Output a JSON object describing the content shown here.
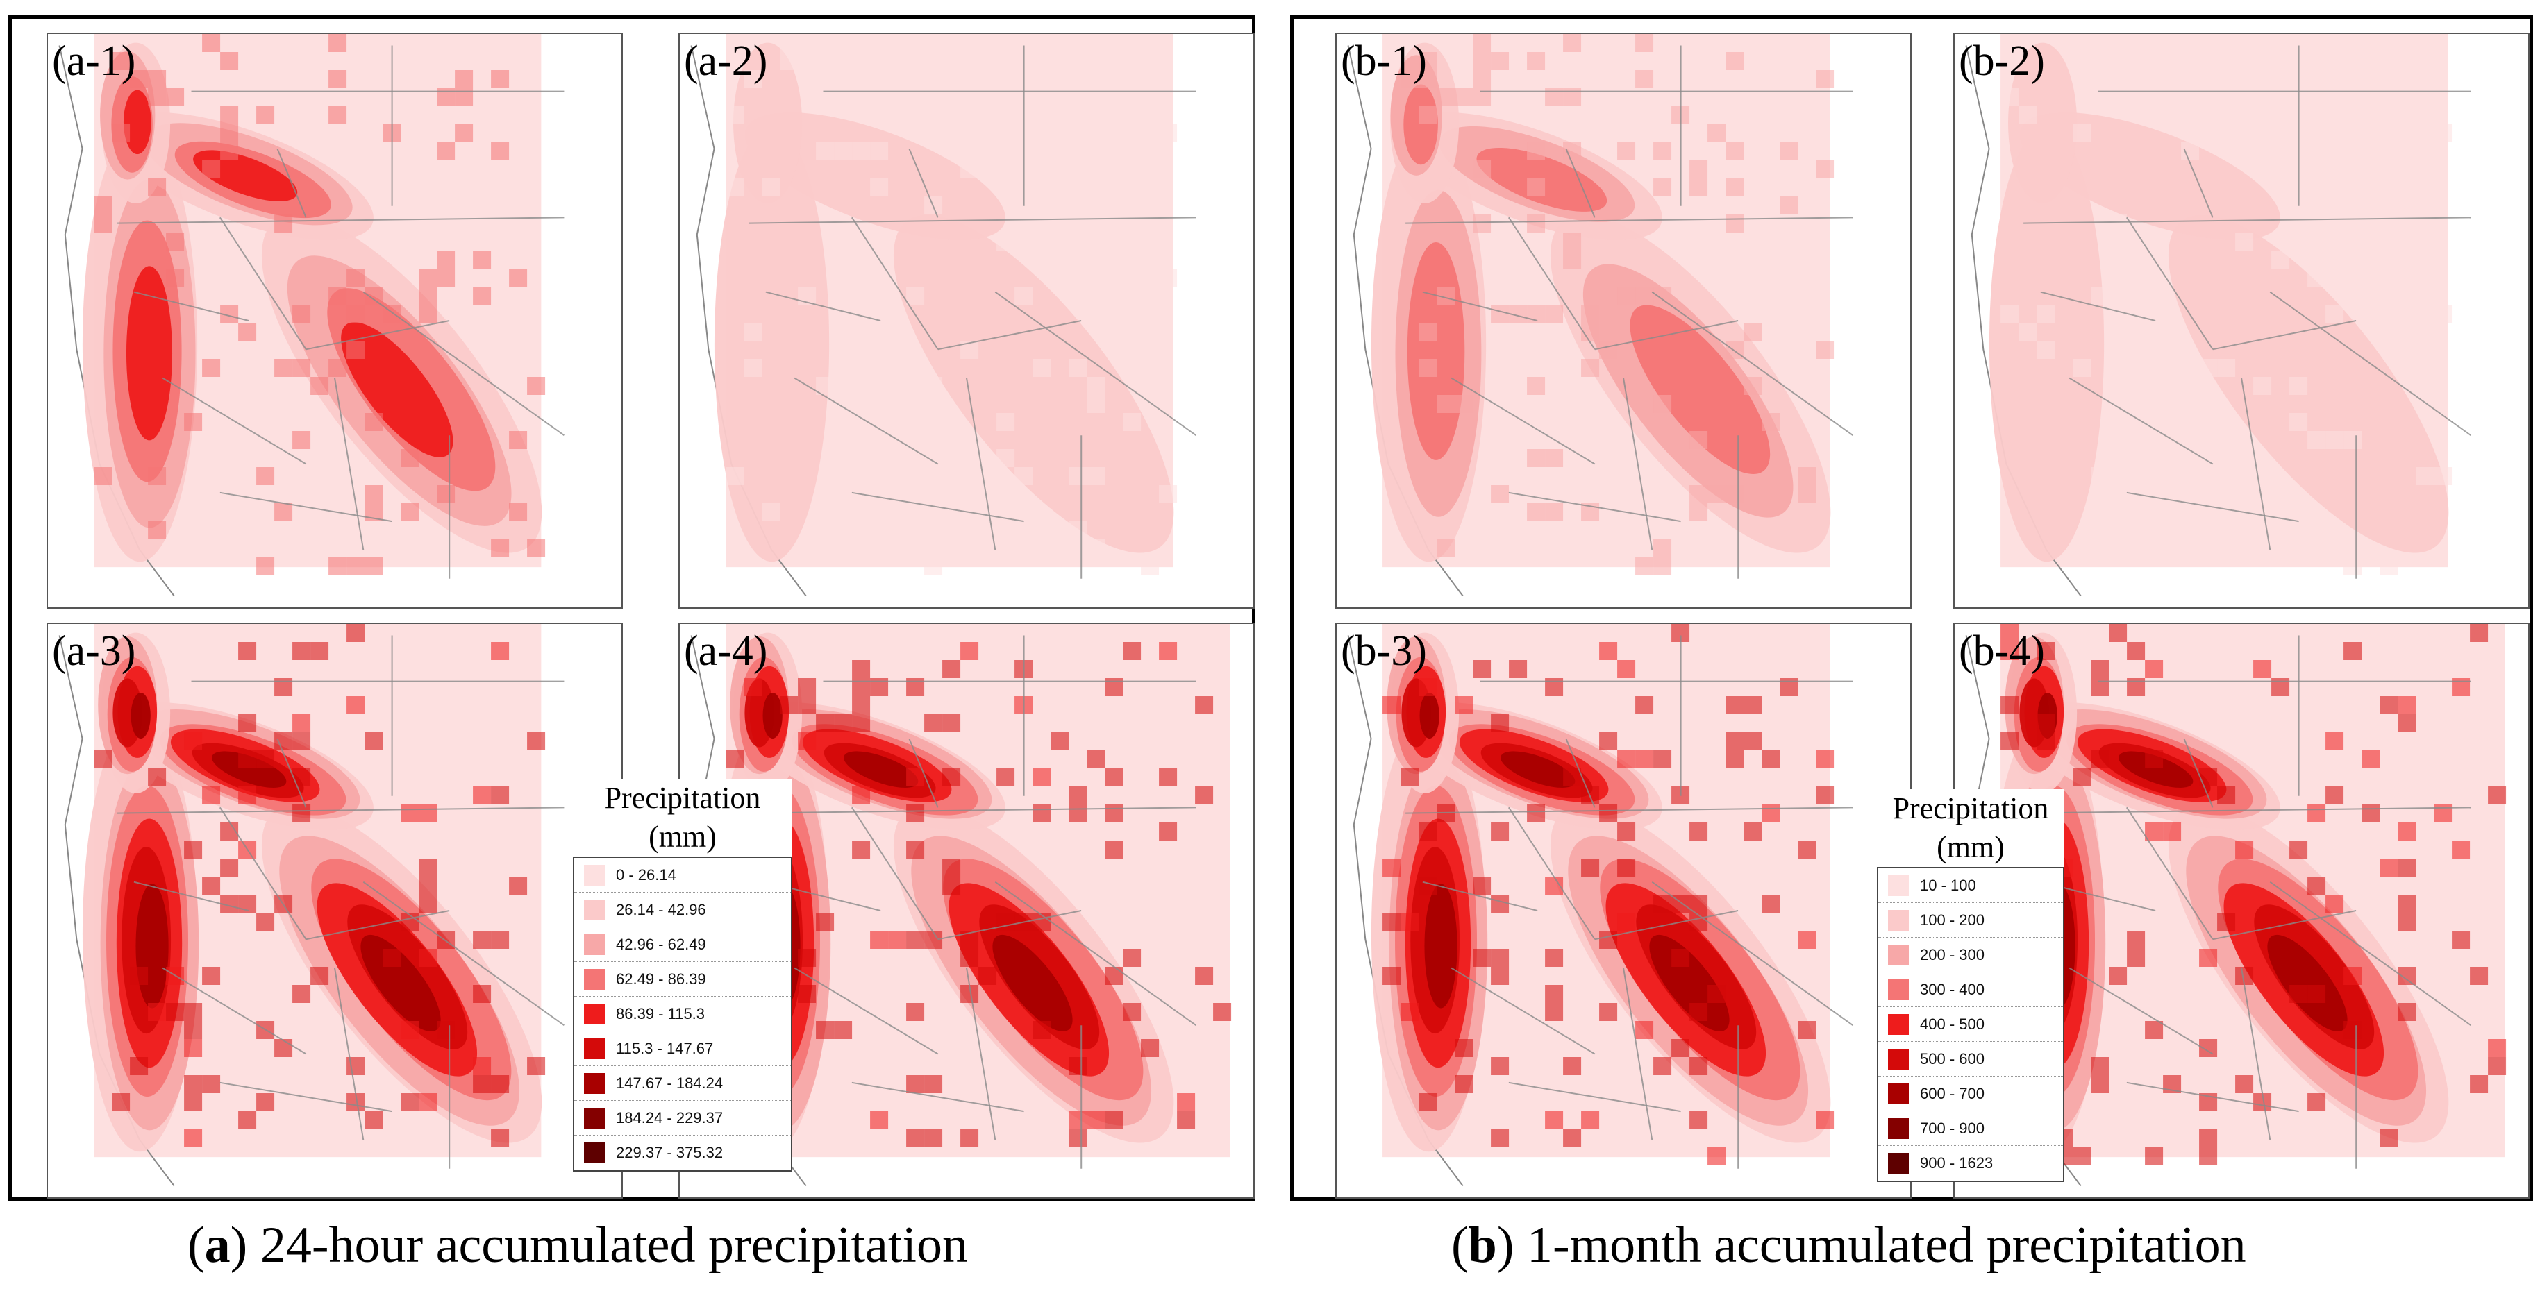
{
  "figure": {
    "a": {
      "caption_letter": "a",
      "caption_rest": " 24-hour accumulated precipitation",
      "panels": [
        {
          "label": "(a-1)",
          "intensity": 0.55
        },
        {
          "label": "(a-2)",
          "intensity": 0.05
        },
        {
          "label": "(a-3)",
          "intensity": 0.7
        },
        {
          "label": "(a-4)",
          "intensity": 0.78
        }
      ],
      "legend": {
        "title_line1": "Precipitation",
        "title_line2": "(mm)",
        "classes": [
          {
            "range": "0 - 26.14",
            "color": "#fde0e0"
          },
          {
            "range": "26.14 - 42.96",
            "color": "#fbcaca"
          },
          {
            "range": "42.96 - 62.49",
            "color": "#f7a8a8"
          },
          {
            "range": "62.49 - 86.39",
            "color": "#f47575"
          },
          {
            "range": "86.39 - 115.3",
            "color": "#ee1c1c"
          },
          {
            "range": "115.3 - 147.67",
            "color": "#d40a0a"
          },
          {
            "range": "147.67 - 184.24",
            "color": "#a80000"
          },
          {
            "range": "184.24 - 229.37",
            "color": "#840000"
          },
          {
            "range": "229.37 - 375.32",
            "color": "#5e0000"
          }
        ]
      }
    },
    "b": {
      "caption_letter": "b",
      "caption_rest": " 1-month accumulated precipitation",
      "panels": [
        {
          "label": "(b-1)",
          "intensity": 0.35
        },
        {
          "label": "(b-2)",
          "intensity": 0.05
        },
        {
          "label": "(b-3)",
          "intensity": 0.72
        },
        {
          "label": "(b-4)",
          "intensity": 0.8
        }
      ],
      "legend": {
        "title_line1": "Precipitation",
        "title_line2": "(mm)",
        "classes": [
          {
            "range": "10 - 100",
            "color": "#fde0e0"
          },
          {
            "range": "100 - 200",
            "color": "#fbcaca"
          },
          {
            "range": "200 - 300",
            "color": "#f7a8a8"
          },
          {
            "range": "300 - 400",
            "color": "#f47575"
          },
          {
            "range": "400 - 500",
            "color": "#ee1c1c"
          },
          {
            "range": "500 - 600",
            "color": "#d40a0a"
          },
          {
            "range": "600 - 700",
            "color": "#a80000"
          },
          {
            "range": "700 - 900",
            "color": "#840000"
          },
          {
            "range": "900 - 1623",
            "color": "#5e0000"
          }
        ]
      }
    }
  }
}
